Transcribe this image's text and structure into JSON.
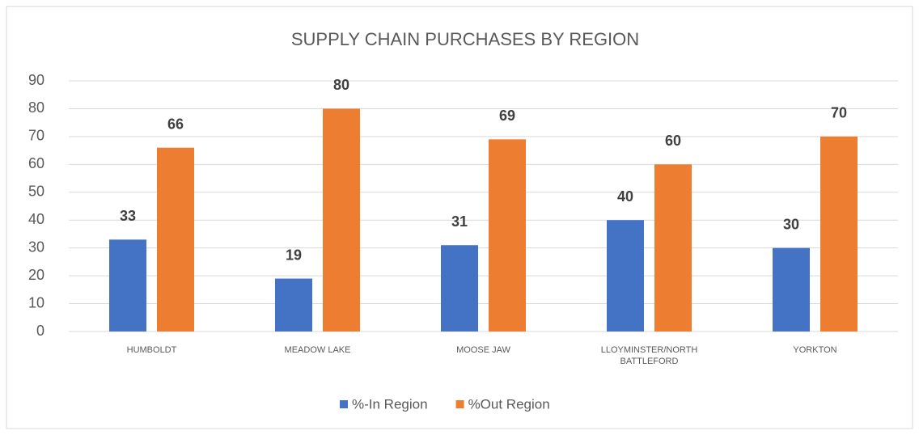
{
  "chart_data": {
    "type": "bar",
    "title": "SUPPLY CHAIN PURCHASES BY REGION",
    "categories": [
      "HUMBOLDT",
      "MEADOW LAKE",
      "MOOSE JAW",
      "LLOYMINSTER/NORTH BATTLEFORD",
      "YORKTON"
    ],
    "series": [
      {
        "name": "%-In Region",
        "color": "#4472c4",
        "values": [
          33,
          19,
          31,
          40,
          30
        ]
      },
      {
        "name": "%Out Region",
        "color": "#ed7d31",
        "values": [
          66,
          80,
          69,
          60,
          70
        ]
      }
    ],
    "ylim": [
      0,
      90
    ],
    "yticks": [
      0,
      10,
      20,
      30,
      40,
      50,
      60,
      70,
      80,
      90
    ],
    "grid": true,
    "legend": "bottom"
  }
}
